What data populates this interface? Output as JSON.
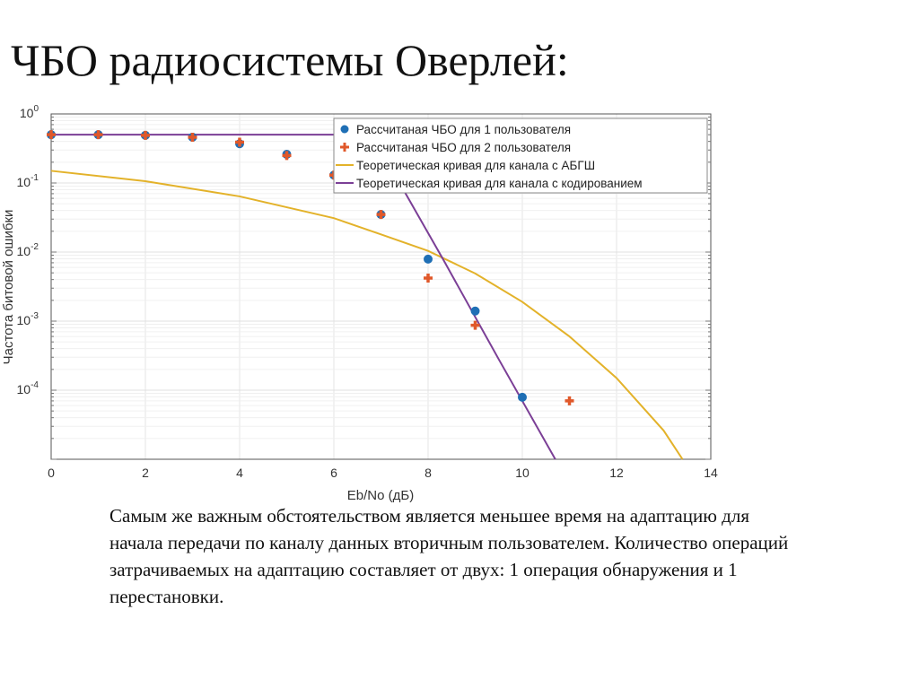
{
  "slide": {
    "title": "ЧБО радиосистемы Оверлей:",
    "body": "Самым же важным обстоятельством является меньшее время на адаптацию для начала передачи по каналу данных вторичным пользователем. Количество операций затрачиваемых на адаптацию составляет от двух: 1 операция обнаружения и 1 перестановки."
  },
  "chart_data": {
    "type": "line",
    "title": "",
    "xlabel": "Eb/No (дБ)",
    "ylabel": "Частота битовой ошибки",
    "xlim": [
      0,
      14
    ],
    "ylim": [
      1e-05,
      1
    ],
    "yscale": "log",
    "grid": true,
    "legend_position": "top-right",
    "x_ticks": [
      "0",
      "2",
      "4",
      "6",
      "8",
      "10",
      "12",
      "14"
    ],
    "y_ticks": [
      {
        "base": "10",
        "exp": "0",
        "value": 1
      },
      {
        "base": "10",
        "exp": "-1",
        "value": 0.1
      },
      {
        "base": "10",
        "exp": "-2",
        "value": 0.01
      },
      {
        "base": "10",
        "exp": "-3",
        "value": 0.001
      },
      {
        "base": "10",
        "exp": "-4",
        "value": 0.0001
      }
    ],
    "series": [
      {
        "name": "Рассчитаная ЧБО для 1 пользователя",
        "kind": "scatter",
        "marker": "circle",
        "color": "#1f6fb5",
        "x": [
          0,
          1,
          2,
          3,
          4,
          5,
          6,
          7,
          8,
          9,
          10
        ],
        "y": [
          0.5,
          0.5,
          0.49,
          0.46,
          0.37,
          0.26,
          0.13,
          0.035,
          0.0079,
          0.0014,
          7.9e-05
        ]
      },
      {
        "name": "Рассчитаная ЧБО для 2 пользователя",
        "kind": "scatter",
        "marker": "plus",
        "color": "#e0582a",
        "x": [
          0,
          1,
          2,
          3,
          4,
          5,
          6,
          7,
          8,
          9,
          11
        ],
        "y": [
          0.5,
          0.5,
          0.49,
          0.46,
          0.39,
          0.25,
          0.13,
          0.035,
          0.0042,
          0.00087,
          7e-05
        ]
      },
      {
        "name": "Теоретическая кривая для канала с АБГШ",
        "kind": "line",
        "color": "#e3b22a",
        "x": [
          0,
          2,
          4,
          6,
          7,
          8,
          9,
          10,
          11,
          12,
          13,
          13.4
        ],
        "y": [
          0.15,
          0.106,
          0.064,
          0.031,
          0.018,
          0.0104,
          0.0049,
          0.0019,
          0.0006,
          0.00015,
          2.6e-05,
          1e-05
        ]
      },
      {
        "name": "Теоретическая кривая для канала с кодированием",
        "kind": "line",
        "color": "#7b3f96",
        "x": [
          0,
          6.85,
          7.3,
          8.33,
          9.5,
          10.7
        ],
        "y": [
          0.5,
          0.5,
          0.13,
          0.0076,
          0.00028,
          1e-05
        ]
      }
    ]
  }
}
